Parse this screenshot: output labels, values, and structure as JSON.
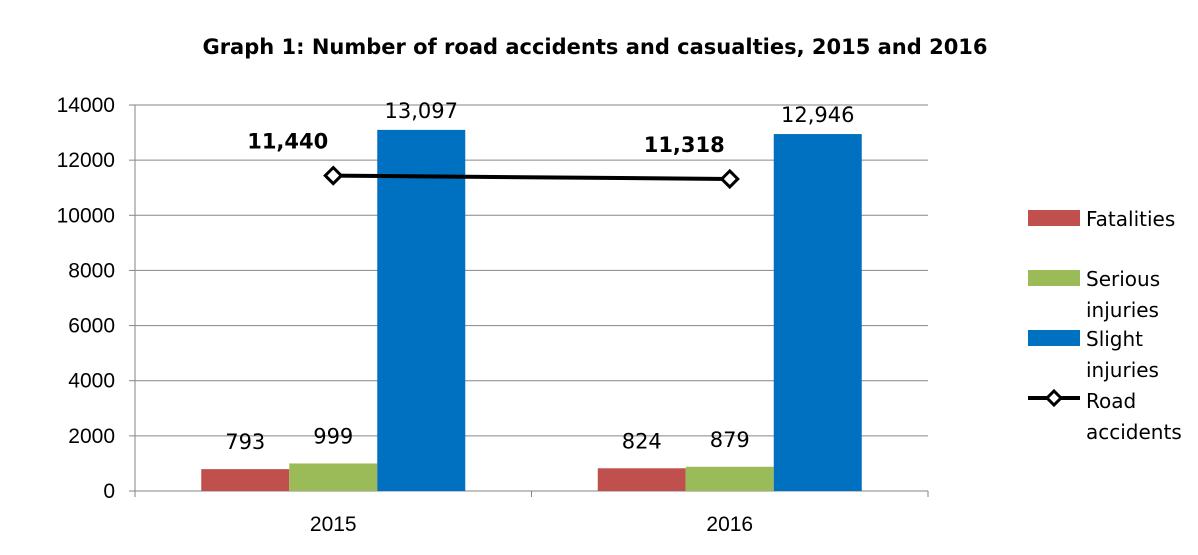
{
  "chart_data": {
    "type": "bar",
    "title": "Graph 1: Number of road accidents and casualties, 2015 and 2016",
    "categories": [
      "2015",
      "2016"
    ],
    "ylim": [
      0,
      14000
    ],
    "yticks": [
      "0",
      "2000",
      "4000",
      "6000",
      "8000",
      "10000",
      "12000",
      "14000"
    ],
    "grid": true,
    "legend_position": "right",
    "series": [
      {
        "name": "Fatalities",
        "kind": "bar",
        "color": "#C0504D",
        "values": [
          793,
          824
        ],
        "labels": [
          "793",
          "824"
        ]
      },
      {
        "name": "Serious injuries",
        "kind": "bar",
        "color": "#9BBB59",
        "values": [
          999,
          879
        ],
        "labels": [
          "999",
          "879"
        ]
      },
      {
        "name": "Slight injuries",
        "kind": "bar",
        "color": "#0070C0",
        "values": [
          13097,
          12946
        ],
        "labels": [
          "13,097",
          "12,946"
        ]
      },
      {
        "name": "Road accidents",
        "kind": "line",
        "color": "#000000",
        "values": [
          11440,
          11318
        ],
        "labels": [
          "11,440",
          "11,318"
        ]
      }
    ],
    "legend": [
      {
        "lines": [
          "Fatalities"
        ]
      },
      {
        "lines": [
          "Serious",
          "injuries"
        ]
      },
      {
        "lines": [
          "Slight",
          "injuries"
        ]
      },
      {
        "lines": [
          "Road",
          "accidents"
        ]
      }
    ]
  }
}
